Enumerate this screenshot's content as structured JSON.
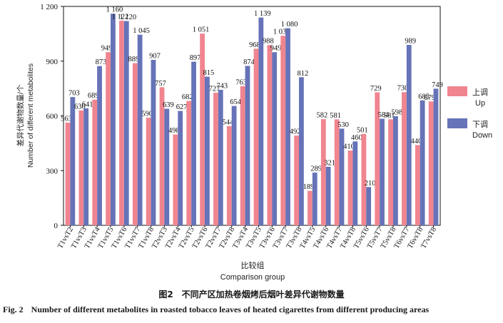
{
  "chart_data": {
    "type": "bar",
    "title": "",
    "xlabel_cn": "比较组",
    "xlabel_en": "Comparison group",
    "ylabel_cn": "差异代谢物数量/个",
    "ylabel_en": "Number of different metabolites",
    "ylim": [
      0,
      1200
    ],
    "yticks": [
      "0",
      "300",
      "600",
      "900",
      "1 200"
    ],
    "ytick_values": [
      0,
      300,
      600,
      900,
      1200
    ],
    "categories": [
      "T1vsT2",
      "T1vsT3",
      "T1vsT4",
      "T1vsT5",
      "T1vsT6",
      "T1vsT7",
      "T1vsT8",
      "T2vsT3",
      "T2vsT4",
      "T2vsT5",
      "T2vsT6",
      "T2vsT7",
      "T2vsT8",
      "T3vsT4",
      "T3vsT5",
      "T3vsT6",
      "T3vsT7",
      "T3vsT8",
      "T4vsT5",
      "T4vsT6",
      "T4vsT7",
      "T4vsT8",
      "T5vsT6",
      "T5vsT7",
      "T5vsT8",
      "T6vsT7",
      "T6vsT8",
      "T7vsT8"
    ],
    "series": [
      {
        "name": "上调 Up",
        "name_cn": "上调",
        "name_en": "Up",
        "color": "#f08590",
        "values": [
          563,
          630,
          689,
          949,
          1122,
          889,
          590,
          757,
          498,
          682,
          1051,
          727,
          544,
          763,
          968,
          988,
          1039,
          492,
          189,
          582,
          581,
          410,
          501,
          729,
          581,
          730,
          440,
          679
        ],
        "labels": [
          "563",
          "630",
          "689",
          "949",
          "1 122",
          "889",
          "590",
          "757",
          "498",
          "682",
          "1 051",
          "727",
          "544",
          "763",
          "968",
          "988",
          "1 039",
          "492",
          "189",
          "582",
          "581",
          "410",
          "501",
          "729",
          "581",
          "730",
          "440",
          "679"
        ]
      },
      {
        "name": "下调 Down",
        "name_cn": "下调",
        "name_en": "Down",
        "color": "#6673b8",
        "values": [
          703,
          641,
          873,
          1160,
          1120,
          1045,
          907,
          639,
          627,
          897,
          815,
          743,
          654,
          874,
          1139,
          949,
          1080,
          812,
          289,
          321,
          530,
          460,
          210,
          584,
          598,
          989,
          685,
          749
        ],
        "labels": [
          "703",
          "641",
          "873",
          "1 160",
          "1 120",
          "1 045",
          "907",
          "639",
          "627",
          "897",
          "815",
          "743",
          "654",
          "874",
          "1 139",
          "949",
          "1 080",
          "812",
          "289",
          "321",
          "530",
          "460",
          "210",
          "584",
          "598",
          "989",
          "685",
          "749"
        ]
      }
    ],
    "legend_position": "right"
  },
  "caption": {
    "cn": "图2　不同产区加热卷烟烤后烟叶差异代谢物数量",
    "en_fig": "Fig. 2",
    "en_text": "Number of different metabolites in roasted tobacco leaves of heated cigarettes from different producing areas"
  }
}
